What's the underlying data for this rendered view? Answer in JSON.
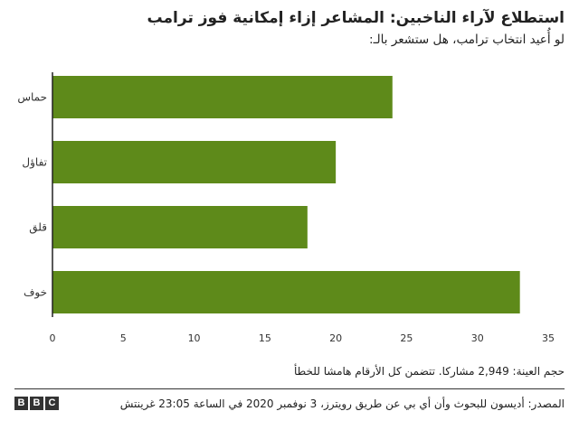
{
  "header": {
    "title": "استطلاع لآراء الناخبين: المشاعر إزاء إمكانية فوز ترامب",
    "subtitle": "لو أُعيد انتخاب ترامب، هل ستشعر بالـ:"
  },
  "chart_data": {
    "type": "bar",
    "orientation": "horizontal",
    "categories": [
      "حماس",
      "تفاؤل",
      "قلق",
      "خوف"
    ],
    "values": [
      24,
      20,
      18,
      33
    ],
    "xlim": [
      0,
      35
    ],
    "xticks": [
      0,
      5,
      10,
      15,
      20,
      25,
      30,
      35
    ],
    "bar_color": "#5e8a1a",
    "grid": false
  },
  "footer": {
    "note": "حجم العينة: 2,949 مشاركا. تتضمن كل الأرقام هامشا للخطأ",
    "source": "المصدر: أديسون للبحوث وأن أي بي عن طريق رويترز، 3 نوفمبر 2020 في الساعة 23:05 غرينتش",
    "logo_letters": [
      "B",
      "B",
      "C"
    ]
  }
}
